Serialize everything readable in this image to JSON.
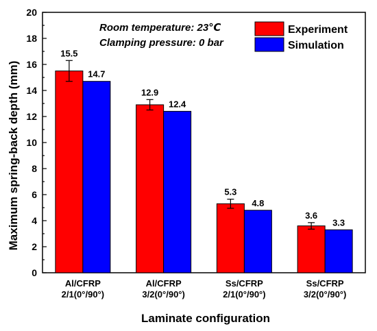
{
  "chart_data": {
    "type": "bar",
    "title": "",
    "categories": [
      [
        "Al/CFRP",
        "2/1(0°/90°)"
      ],
      [
        "Al/CFRP",
        "3/2(0°/90°)"
      ],
      [
        "Ss/CFRP",
        "2/1(0°/90°)"
      ],
      [
        "Ss/CFRP",
        "3/2(0°/90°)"
      ]
    ],
    "series": [
      {
        "name": "Experiment",
        "color": "#ff0000",
        "values": [
          15.5,
          12.9,
          5.3,
          3.6
        ],
        "error": [
          0.8,
          0.4,
          0.35,
          0.25
        ],
        "labels": [
          "15.5",
          "12.9",
          "5.3",
          "3.6"
        ]
      },
      {
        "name": "Simulation",
        "color": "#0000ff",
        "values": [
          14.7,
          12.4,
          4.8,
          3.3
        ],
        "labels": [
          "14.7",
          "12.4",
          "4.8",
          "3.3"
        ]
      }
    ],
    "xlabel": "Laminate configuration",
    "ylabel": "Maximum spring-back depth (mm)",
    "ylim": [
      0,
      20
    ],
    "yticks": [
      "0",
      "2",
      "4",
      "6",
      "8",
      "10",
      "12",
      "14",
      "16",
      "18",
      "20"
    ],
    "annotations": [
      "Room temperature: 23℃",
      "Clamping pressure: 0 bar"
    ],
    "legend_position": "top-right",
    "grid": false
  }
}
